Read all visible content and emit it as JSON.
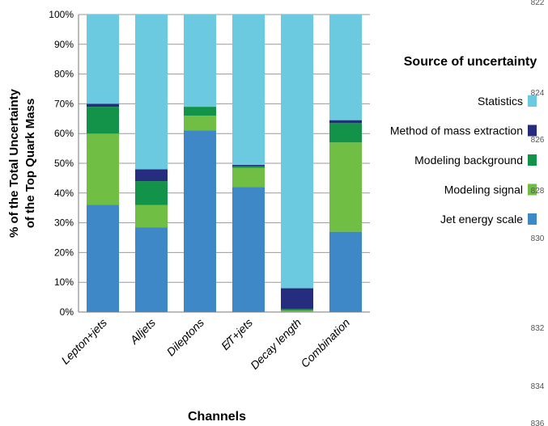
{
  "chart_data": {
    "type": "bar",
    "stacked": true,
    "categories": [
      "Lepton+jets",
      "Alljets",
      "Dileptons",
      "E̸T+jets",
      "Decay length",
      "Combination"
    ],
    "series": [
      {
        "name": "Jet energy scale",
        "color": "#3f88c8",
        "values": [
          36,
          28.5,
          61,
          42,
          0.2,
          27
        ]
      },
      {
        "name": "Modeling signal",
        "color": "#70bf44",
        "values": [
          24,
          7.5,
          5,
          6.5,
          0.3,
          30
        ]
      },
      {
        "name": "Modeling background",
        "color": "#13924a",
        "values": [
          9,
          8,
          3,
          0.5,
          0.5,
          6.5
        ]
      },
      {
        "name": "Method of mass extraction",
        "color": "#262c7e",
        "values": [
          1,
          4,
          0,
          0.5,
          7,
          1
        ]
      },
      {
        "name": "Statistics",
        "color": "#6bcadf",
        "values": [
          30,
          52,
          31,
          50.5,
          92,
          35.5
        ]
      }
    ],
    "ylim": [
      0,
      100
    ],
    "yticks": [
      "0%",
      "10%",
      "20%",
      "30%",
      "40%",
      "50%",
      "60%",
      "70%",
      "80%",
      "90%",
      "100%"
    ],
    "ylabel_line1": "% of the Total Uncertainty",
    "ylabel_line2": "of the Top Quark Mass",
    "xlabel": "Channels",
    "legend_title": "Source of uncertainty",
    "legend_placement": "right",
    "legend_order": [
      "Statistics",
      "Method of mass extraction",
      "Modeling background",
      "Modeling signal",
      "Jet energy scale"
    ],
    "grid": true
  },
  "margin_numbers": [
    "822",
    "824",
    "826",
    "828",
    "830",
    "832",
    "834",
    "836"
  ]
}
